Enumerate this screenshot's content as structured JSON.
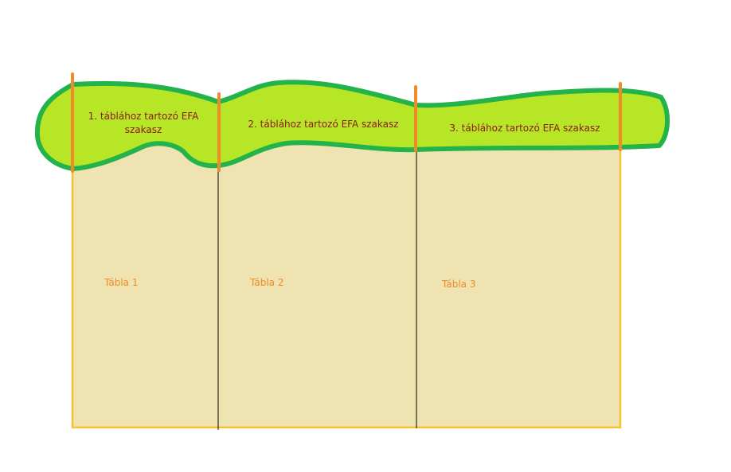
{
  "strips": [
    {
      "line1": "1. táblához tartozó EFA",
      "line2": "szakasz"
    },
    {
      "line1": "2. táblához tartozó EFA szakasz"
    },
    {
      "line1": "3. táblához tartozó EFA szakasz"
    }
  ],
  "fields": [
    {
      "label": "Tábla 1"
    },
    {
      "label": "Tábla 2"
    },
    {
      "label": "Tábla 3"
    }
  ],
  "colors": {
    "field_fill": "#efe3b1",
    "field_border": "#f6c233",
    "strip_fill": "#b7e626",
    "strip_border": "#23b34a",
    "boundary_marker": "#f08a2a",
    "divider": "#000000",
    "strip_text": "#8b1a1a",
    "field_text": "#f08a2a"
  }
}
